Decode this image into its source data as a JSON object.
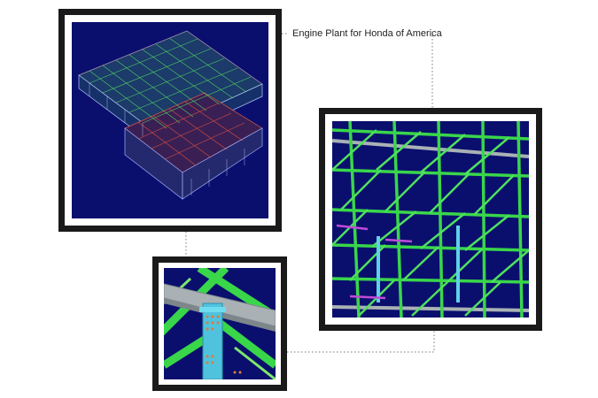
{
  "caption": "Engine Plant for Honda of America",
  "colors": {
    "frame": "#1a1a1a",
    "model_background": "#0a0f6e",
    "steel_green": "#39d64a",
    "steel_red": "#d8452e",
    "steel_cyan": "#5fd0e8",
    "steel_magenta": "#c04bd8",
    "steel_grey": "#a9b1b5"
  },
  "panels": [
    {
      "name": "plant-overview-render",
      "description_icon": "3d-wireframe-icon"
    },
    {
      "name": "roof-truss-closeup-render",
      "description_icon": "3d-truss-icon"
    },
    {
      "name": "connection-detail-render",
      "description_icon": "3d-connection-icon"
    }
  ]
}
